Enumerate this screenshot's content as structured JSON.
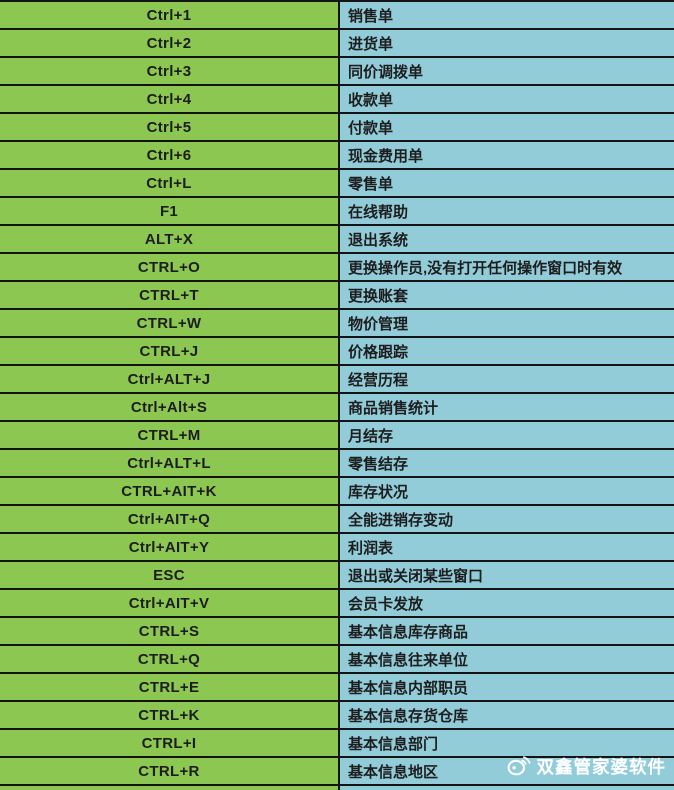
{
  "table": {
    "rows": [
      {
        "shortcut": "Ctrl+1",
        "action": "销售单"
      },
      {
        "shortcut": "Ctrl+2",
        "action": "进货单"
      },
      {
        "shortcut": "Ctrl+3",
        "action": "同价调拨单"
      },
      {
        "shortcut": "Ctrl+4",
        "action": "收款单"
      },
      {
        "shortcut": "Ctrl+5",
        "action": "付款单"
      },
      {
        "shortcut": "Ctrl+6",
        "action": "现金费用单"
      },
      {
        "shortcut": "Ctrl+L",
        "action": "零售单"
      },
      {
        "shortcut": "F1",
        "action": "在线帮助"
      },
      {
        "shortcut": "ALT+X",
        "action": "退出系统"
      },
      {
        "shortcut": "CTRL+O",
        "action": "更换操作员,没有打开任何操作窗口时有效"
      },
      {
        "shortcut": "CTRL+T",
        "action": "更换账套"
      },
      {
        "shortcut": "CTRL+W",
        "action": "物价管理"
      },
      {
        "shortcut": "CTRL+J",
        "action": "价格跟踪"
      },
      {
        "shortcut": "Ctrl+ALT+J",
        "action": "经营历程"
      },
      {
        "shortcut": "Ctrl+Alt+S",
        "action": "商品销售统计"
      },
      {
        "shortcut": "CTRL+M",
        "action": "月结存"
      },
      {
        "shortcut": "Ctrl+ALT+L",
        "action": "零售结存"
      },
      {
        "shortcut": "CTRL+AIT+K",
        "action": "库存状况"
      },
      {
        "shortcut": "Ctrl+AIT+Q",
        "action": "全能进销存变动"
      },
      {
        "shortcut": "Ctrl+AIT+Y",
        "action": "利润表"
      },
      {
        "shortcut": "ESC",
        "action": "退出或关闭某些窗口"
      },
      {
        "shortcut": "Ctrl+AIT+V",
        "action": "会员卡发放"
      },
      {
        "shortcut": "CTRL+S",
        "action": "基本信息库存商品"
      },
      {
        "shortcut": "CTRL+Q",
        "action": "基本信息往来单位"
      },
      {
        "shortcut": "CTRL+E",
        "action": "基本信息内部职员"
      },
      {
        "shortcut": "CTRL+K",
        "action": "基本信息存货仓库"
      },
      {
        "shortcut": "CTRL+I",
        "action": "基本信息部门"
      },
      {
        "shortcut": "CTRL+R",
        "action": "基本信息地区"
      }
    ]
  },
  "watermark": {
    "label": "双鑫管家婆软件",
    "icon": "weibo-eye-icon"
  },
  "colors": {
    "key_bg": "#8cc751",
    "action_bg": "#92ccd9",
    "border": "#141414",
    "text": "#1d1d1d",
    "watermark_text": "#ffffff"
  }
}
